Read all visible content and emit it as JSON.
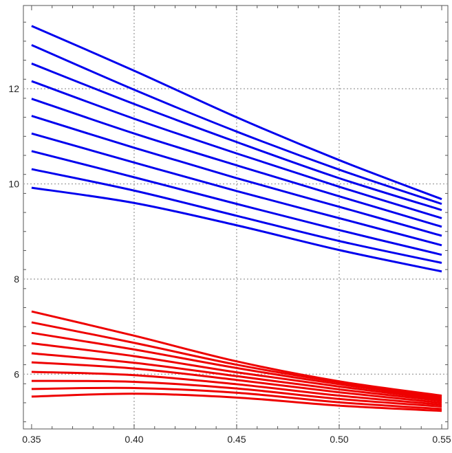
{
  "chart_data": {
    "type": "line",
    "title": "",
    "xlabel": "",
    "ylabel": "",
    "xlim": [
      0.346,
      0.553
    ],
    "ylim": [
      4.85,
      13.75
    ],
    "x_ticks": [
      0.35,
      0.4,
      0.45,
      0.5,
      0.55
    ],
    "x_tick_labels": [
      "0.35",
      "0.40",
      "0.45",
      "0.50",
      "0.55"
    ],
    "y_ticks": [
      6,
      8,
      10,
      12
    ],
    "y_tick_labels": [
      "6",
      "8",
      "10",
      "12"
    ],
    "grid": true,
    "grid_style": "dotted",
    "series": [
      {
        "color": "#0000ee",
        "points": [
          [
            0.35,
            13.32
          ],
          [
            0.4,
            12.38
          ],
          [
            0.45,
            11.4
          ],
          [
            0.5,
            10.5
          ],
          [
            0.55,
            9.68
          ]
        ]
      },
      {
        "color": "#0000ee",
        "points": [
          [
            0.35,
            12.92
          ],
          [
            0.4,
            11.98
          ],
          [
            0.45,
            11.1
          ],
          [
            0.5,
            10.3
          ],
          [
            0.55,
            9.58
          ]
        ]
      },
      {
        "color": "#0000ee",
        "points": [
          [
            0.35,
            12.53
          ],
          [
            0.4,
            11.68
          ],
          [
            0.45,
            10.88
          ],
          [
            0.5,
            10.12
          ],
          [
            0.55,
            9.45
          ]
        ]
      },
      {
        "color": "#0000ee",
        "points": [
          [
            0.35,
            12.16
          ],
          [
            0.4,
            11.37
          ],
          [
            0.45,
            10.64
          ],
          [
            0.5,
            9.94
          ],
          [
            0.55,
            9.28
          ]
        ]
      },
      {
        "color": "#0000ee",
        "points": [
          [
            0.35,
            11.79
          ],
          [
            0.4,
            11.06
          ],
          [
            0.45,
            10.39
          ],
          [
            0.5,
            9.74
          ],
          [
            0.55,
            9.1
          ]
        ]
      },
      {
        "color": "#0000ee",
        "points": [
          [
            0.35,
            11.43
          ],
          [
            0.4,
            10.76
          ],
          [
            0.45,
            10.12
          ],
          [
            0.5,
            9.52
          ],
          [
            0.55,
            8.91
          ]
        ]
      },
      {
        "color": "#0000ee",
        "points": [
          [
            0.35,
            11.06
          ],
          [
            0.4,
            10.45
          ],
          [
            0.45,
            9.85
          ],
          [
            0.5,
            9.28
          ],
          [
            0.55,
            8.71
          ]
        ]
      },
      {
        "color": "#0000ee",
        "points": [
          [
            0.35,
            10.69
          ],
          [
            0.4,
            10.14
          ],
          [
            0.45,
            9.58
          ],
          [
            0.5,
            9.03
          ],
          [
            0.55,
            8.51
          ]
        ]
      },
      {
        "color": "#0000ee",
        "points": [
          [
            0.35,
            10.31
          ],
          [
            0.4,
            9.86
          ],
          [
            0.45,
            9.33
          ],
          [
            0.5,
            8.8
          ],
          [
            0.55,
            8.34
          ]
        ]
      },
      {
        "color": "#0000ee",
        "points": [
          [
            0.35,
            9.92
          ],
          [
            0.4,
            9.6
          ],
          [
            0.45,
            9.13
          ],
          [
            0.5,
            8.61
          ],
          [
            0.55,
            8.16
          ]
        ]
      },
      {
        "color": "#ee0000",
        "points": [
          [
            0.35,
            7.32
          ],
          [
            0.4,
            6.81
          ],
          [
            0.45,
            6.27
          ],
          [
            0.5,
            5.85
          ],
          [
            0.55,
            5.55
          ]
        ]
      },
      {
        "color": "#ee0000",
        "points": [
          [
            0.35,
            7.09
          ],
          [
            0.4,
            6.66
          ],
          [
            0.45,
            6.2
          ],
          [
            0.5,
            5.83
          ],
          [
            0.55,
            5.53
          ]
        ]
      },
      {
        "color": "#ee0000",
        "points": [
          [
            0.35,
            6.87
          ],
          [
            0.4,
            6.52
          ],
          [
            0.45,
            6.13
          ],
          [
            0.5,
            5.79
          ],
          [
            0.55,
            5.5
          ]
        ]
      },
      {
        "color": "#ee0000",
        "points": [
          [
            0.35,
            6.65
          ],
          [
            0.4,
            6.38
          ],
          [
            0.45,
            6.04
          ],
          [
            0.5,
            5.74
          ],
          [
            0.55,
            5.47
          ]
        ]
      },
      {
        "color": "#ee0000",
        "points": [
          [
            0.35,
            6.44
          ],
          [
            0.4,
            6.24
          ],
          [
            0.45,
            5.96
          ],
          [
            0.5,
            5.68
          ],
          [
            0.55,
            5.44
          ]
        ]
      },
      {
        "color": "#ee0000",
        "points": [
          [
            0.35,
            6.25
          ],
          [
            0.4,
            6.12
          ],
          [
            0.45,
            5.88
          ],
          [
            0.5,
            5.62
          ],
          [
            0.55,
            5.4
          ]
        ]
      },
      {
        "color": "#ee0000",
        "points": [
          [
            0.35,
            6.05
          ],
          [
            0.4,
            5.98
          ],
          [
            0.45,
            5.79
          ],
          [
            0.5,
            5.55
          ],
          [
            0.55,
            5.36
          ]
        ]
      },
      {
        "color": "#ee0000",
        "points": [
          [
            0.35,
            5.86
          ],
          [
            0.4,
            5.84
          ],
          [
            0.45,
            5.7
          ],
          [
            0.5,
            5.48
          ],
          [
            0.55,
            5.32
          ]
        ]
      },
      {
        "color": "#ee0000",
        "points": [
          [
            0.35,
            5.69
          ],
          [
            0.4,
            5.71
          ],
          [
            0.45,
            5.61
          ],
          [
            0.5,
            5.41
          ],
          [
            0.55,
            5.27
          ]
        ]
      },
      {
        "color": "#ee0000",
        "points": [
          [
            0.35,
            5.53
          ],
          [
            0.4,
            5.59
          ],
          [
            0.45,
            5.51
          ],
          [
            0.5,
            5.34
          ],
          [
            0.55,
            5.23
          ]
        ]
      }
    ]
  }
}
